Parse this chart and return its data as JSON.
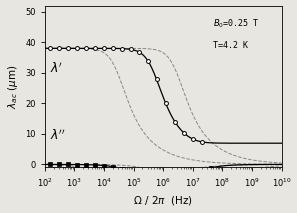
{
  "xlabel": "$\\Omega$ / 2$\\pi$  (Hz)",
  "ylabel": "$\\lambda_{ac}$ ($\\mu$m)",
  "annotation1": "$B_0$=0.25 T",
  "annotation2": "T=4.2 K",
  "xlim_log": [
    2,
    10
  ],
  "ylim": [
    -1,
    52
  ],
  "yticks": [
    0,
    10,
    20,
    30,
    40,
    50
  ],
  "lam0": 38.0,
  "wc_inductive": 500000.0,
  "wc_viscous": 15000000.0,
  "wc_single1": 30000.0,
  "wc_single2": 3000000.0,
  "background": "#e8e6e0"
}
